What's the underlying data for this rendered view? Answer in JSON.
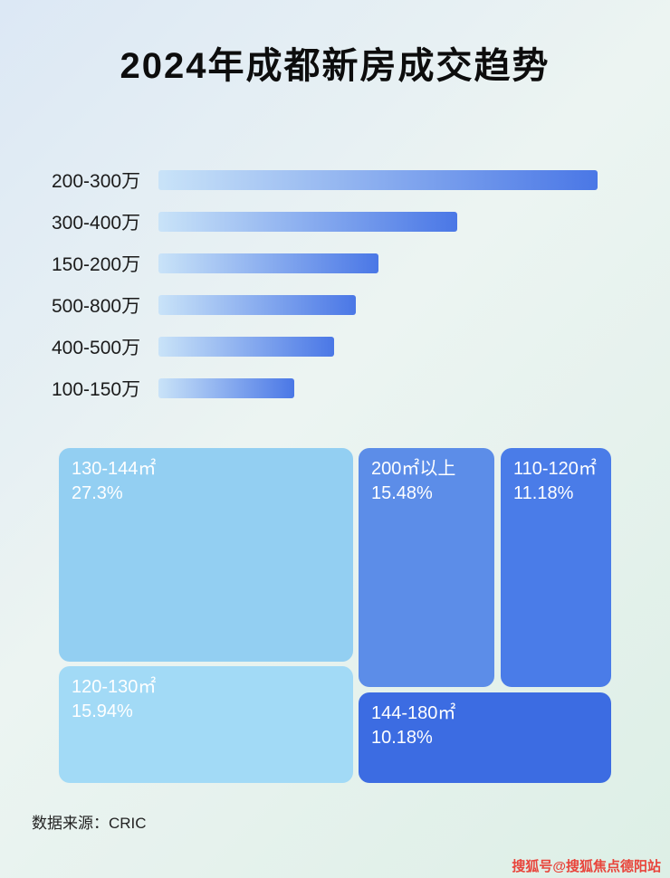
{
  "title": "2024年成都新房成交趋势",
  "footer": {
    "source": "数据来源：CRIC",
    "watermark": "搜狐号@搜狐焦点德阳站"
  },
  "colors": {
    "bar_gradient_start": "#c9e3f8",
    "bar_gradient_end": "#4a77e6",
    "treemap_blocks": [
      "#93cff2",
      "#a2daf6",
      "#5c8de8",
      "#4a7ce8",
      "#3c6ce2"
    ],
    "label_text": "#1b1b1b",
    "block_text": "#ffffff",
    "watermark_text": "#e8453c"
  },
  "chart_data": [
    {
      "type": "bar",
      "orientation": "horizontal",
      "title": "2024年成都新房成交趋势",
      "categories": [
        "200-300万",
        "300-400万",
        "150-200万",
        "500-800万",
        "400-500万",
        "100-150万"
      ],
      "values": [
        100,
        68,
        50,
        45,
        40,
        31
      ],
      "xlabel": "",
      "ylabel": "",
      "axis_note": "no numeric axis shown; values are bar lengths relative to longest bar (percent)"
    },
    {
      "type": "treemap",
      "title": "",
      "items": [
        {
          "label": "130-144㎡",
          "value": 27.3,
          "display": "27.3%"
        },
        {
          "label": "120-130㎡",
          "value": 15.94,
          "display": "15.94%"
        },
        {
          "label": "200㎡以上",
          "value": 15.48,
          "display": "15.48%"
        },
        {
          "label": "110-120㎡",
          "value": 11.18,
          "display": "11.18%"
        },
        {
          "label": "144-180㎡",
          "value": 10.18,
          "display": "10.18%"
        }
      ]
    }
  ]
}
